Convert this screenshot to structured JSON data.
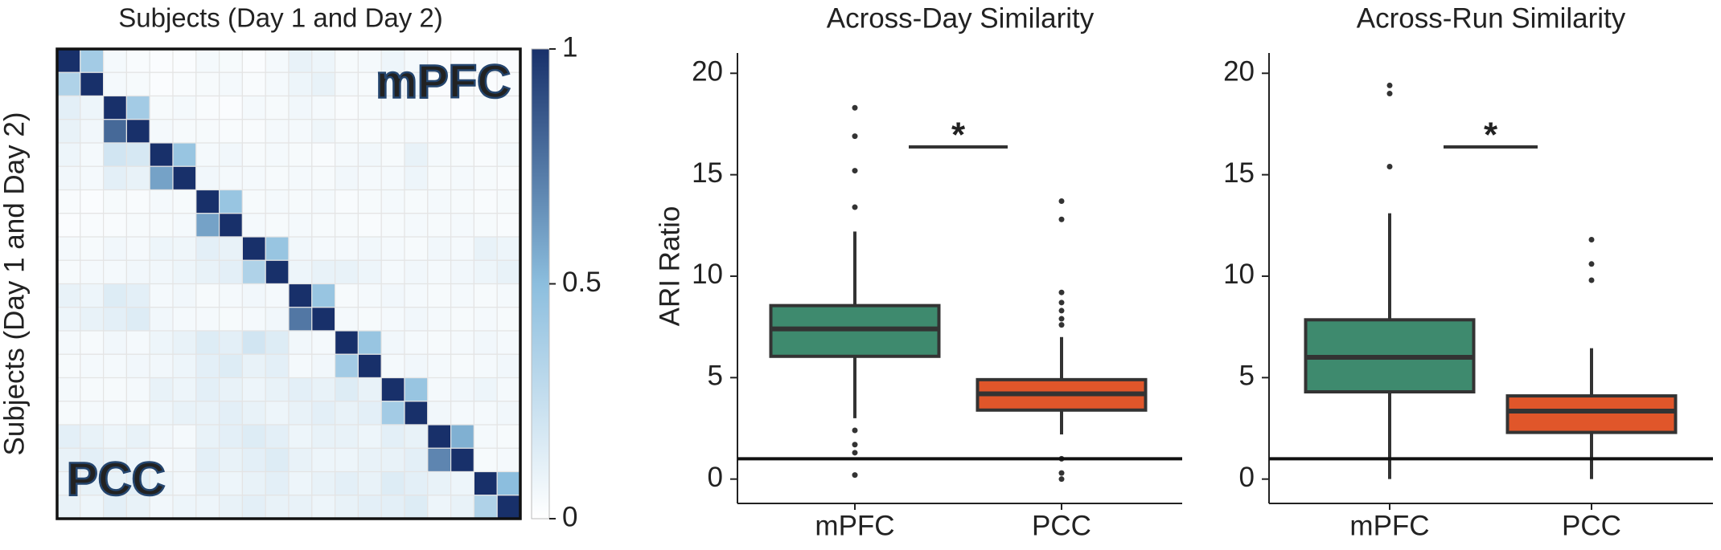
{
  "chart_data": [
    {
      "type": "heatmap",
      "title": "Subjects (Day 1 and Day 2)",
      "y_label": "Subjects (Day 1 and Day 2)",
      "annotations": [
        "mPFC",
        "PCC"
      ],
      "zlim": [
        0,
        1
      ],
      "colorbar_ticks": [
        0,
        0.5,
        1
      ],
      "colors": [
        "#ffffff",
        "#8cbede",
        "#18306a"
      ],
      "values": [
        [
          1,
          0.4,
          0.05,
          0.03,
          0.02,
          0.02,
          0.05,
          0.04,
          0.02,
          0.05,
          0.1,
          0.08,
          0.04,
          0.05,
          0.08,
          0.05,
          0.02,
          0.02,
          0.03,
          0.02
        ],
        [
          0.35,
          1,
          0.05,
          0.04,
          0.02,
          0.03,
          0.04,
          0.05,
          0.03,
          0.05,
          0.08,
          0.1,
          0.05,
          0.04,
          0.05,
          0.06,
          0.02,
          0.03,
          0.02,
          0.03
        ],
        [
          0.12,
          0.08,
          1,
          0.4,
          0.04,
          0.05,
          0.03,
          0.02,
          0.05,
          0.04,
          0.06,
          0.05,
          0.03,
          0.04,
          0.05,
          0.04,
          0.03,
          0.02,
          0.04,
          0.03
        ],
        [
          0.1,
          0.06,
          0.8,
          1,
          0.05,
          0.04,
          0.04,
          0.03,
          0.03,
          0.05,
          0.05,
          0.07,
          0.04,
          0.03,
          0.04,
          0.05,
          0.02,
          0.03,
          0.03,
          0.04
        ],
        [
          0.08,
          0.05,
          0.2,
          0.18,
          1,
          0.45,
          0.05,
          0.06,
          0.04,
          0.05,
          0.04,
          0.03,
          0.05,
          0.06,
          0.04,
          0.1,
          0.05,
          0.04,
          0.03,
          0.05
        ],
        [
          0.06,
          0.05,
          0.12,
          0.1,
          0.6,
          1,
          0.06,
          0.05,
          0.05,
          0.04,
          0.05,
          0.04,
          0.06,
          0.05,
          0.05,
          0.08,
          0.04,
          0.05,
          0.04,
          0.03
        ],
        [
          0.03,
          0.02,
          0.04,
          0.03,
          0.05,
          0.04,
          1,
          0.45,
          0.04,
          0.05,
          0.04,
          0.05,
          0.03,
          0.04,
          0.05,
          0.04,
          0.05,
          0.04,
          0.03,
          0.04
        ],
        [
          0.02,
          0.03,
          0.03,
          0.04,
          0.04,
          0.05,
          0.6,
          1,
          0.05,
          0.04,
          0.05,
          0.04,
          0.04,
          0.03,
          0.04,
          0.05,
          0.04,
          0.05,
          0.04,
          0.03
        ],
        [
          0.05,
          0.04,
          0.06,
          0.05,
          0.08,
          0.07,
          0.12,
          0.1,
          1,
          0.45,
          0.06,
          0.05,
          0.05,
          0.06,
          0.05,
          0.04,
          0.06,
          0.05,
          0.1,
          0.08
        ],
        [
          0.04,
          0.05,
          0.05,
          0.06,
          0.06,
          0.08,
          0.1,
          0.12,
          0.35,
          1,
          0.08,
          0.1,
          0.1,
          0.08,
          0.05,
          0.06,
          0.05,
          0.06,
          0.08,
          0.1
        ],
        [
          0.1,
          0.08,
          0.15,
          0.12,
          0.05,
          0.06,
          0.04,
          0.05,
          0.06,
          0.05,
          1,
          0.45,
          0.04,
          0.05,
          0.06,
          0.05,
          0.04,
          0.05,
          0.04,
          0.05
        ],
        [
          0.08,
          0.1,
          0.12,
          0.15,
          0.06,
          0.05,
          0.05,
          0.04,
          0.05,
          0.06,
          0.75,
          1,
          0.05,
          0.04,
          0.05,
          0.06,
          0.05,
          0.04,
          0.05,
          0.04
        ],
        [
          0.05,
          0.04,
          0.06,
          0.05,
          0.08,
          0.1,
          0.15,
          0.12,
          0.2,
          0.15,
          0.06,
          0.05,
          1,
          0.45,
          0.06,
          0.05,
          0.04,
          0.05,
          0.06,
          0.05
        ],
        [
          0.04,
          0.05,
          0.05,
          0.06,
          0.06,
          0.08,
          0.12,
          0.15,
          0.1,
          0.12,
          0.05,
          0.06,
          0.4,
          1,
          0.05,
          0.06,
          0.05,
          0.04,
          0.05,
          0.06
        ],
        [
          0.05,
          0.04,
          0.04,
          0.05,
          0.1,
          0.08,
          0.12,
          0.1,
          0.08,
          0.1,
          0.12,
          0.1,
          0.15,
          0.1,
          1,
          0.45,
          0.05,
          0.06,
          0.08,
          0.05
        ],
        [
          0.04,
          0.05,
          0.05,
          0.04,
          0.08,
          0.1,
          0.1,
          0.12,
          0.1,
          0.08,
          0.1,
          0.12,
          0.1,
          0.12,
          0.4,
          1,
          0.06,
          0.05,
          0.05,
          0.06
        ],
        [
          0.12,
          0.1,
          0.08,
          0.1,
          0.06,
          0.05,
          0.1,
          0.12,
          0.15,
          0.12,
          0.08,
          0.1,
          0.1,
          0.08,
          0.12,
          0.1,
          1,
          0.55,
          0.05,
          0.04
        ],
        [
          0.1,
          0.12,
          0.1,
          0.08,
          0.05,
          0.06,
          0.12,
          0.1,
          0.12,
          0.15,
          0.1,
          0.08,
          0.08,
          0.1,
          0.1,
          0.12,
          0.7,
          1,
          0.04,
          0.05
        ],
        [
          0.08,
          0.1,
          0.1,
          0.12,
          0.08,
          0.06,
          0.1,
          0.08,
          0.1,
          0.12,
          0.08,
          0.1,
          0.12,
          0.1,
          0.15,
          0.12,
          0.1,
          0.08,
          1,
          0.5
        ],
        [
          0.1,
          0.08,
          0.12,
          0.1,
          0.06,
          0.08,
          0.08,
          0.1,
          0.12,
          0.1,
          0.1,
          0.08,
          0.1,
          0.12,
          0.12,
          0.15,
          0.08,
          0.1,
          0.35,
          1
        ]
      ]
    },
    {
      "type": "box",
      "title": "Across-Day Similarity",
      "y_label": "ARI Ratio",
      "ylim": [
        -1.2,
        21
      ],
      "yticks": [
        0,
        5,
        10,
        15,
        20
      ],
      "hline": 1,
      "annotation": "*",
      "boxes": [
        {
          "category": "mPFC",
          "color": "#3e8a6e",
          "whislo": 3.0,
          "q1": 6.05,
          "med": 7.4,
          "q3": 8.55,
          "whishi": 12.2,
          "fliers": [
            18.3,
            16.9,
            15.2,
            13.4,
            2.4,
            1.7,
            1.3,
            0.2
          ]
        },
        {
          "category": "PCC",
          "color": "#e0562a",
          "whislo": 2.2,
          "q1": 3.4,
          "med": 4.2,
          "q3": 4.9,
          "whishi": 7.0,
          "fliers": [
            13.7,
            12.8,
            9.2,
            8.7,
            8.3,
            7.9,
            7.6,
            1.0,
            0.3,
            0.0
          ]
        }
      ]
    },
    {
      "type": "box",
      "title": "Across-Run Similarity",
      "ylim": [
        -1.2,
        21
      ],
      "yticks": [
        0,
        5,
        10,
        15,
        20
      ],
      "hline": 1,
      "annotation": "*",
      "boxes": [
        {
          "category": "mPFC",
          "color": "#3e8a6e",
          "whislo": 0.0,
          "q1": 4.3,
          "med": 6.0,
          "q3": 7.85,
          "whishi": 13.1,
          "fliers": [
            19.4,
            19.0,
            15.4
          ]
        },
        {
          "category": "PCC",
          "color": "#e0562a",
          "whislo": 0.0,
          "q1": 2.3,
          "med": 3.35,
          "q3": 4.1,
          "whishi": 6.45,
          "fliers": [
            11.8,
            10.6,
            9.8
          ]
        }
      ]
    }
  ]
}
